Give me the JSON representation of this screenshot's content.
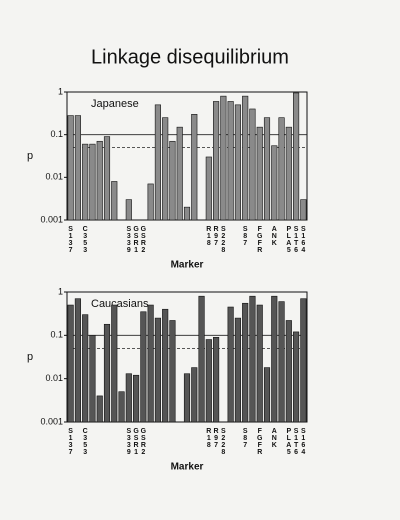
{
  "title": "Linkage disequilibrium",
  "chart_data": [
    {
      "type": "bar",
      "label": "Japanese",
      "ylabel": "p",
      "xlabel": "Marker",
      "log_y": true,
      "ylim": [
        0.001,
        1
      ],
      "yticks": [
        0.001,
        0.01,
        0.1,
        1
      ],
      "reference_lines": [
        {
          "value": 0.1,
          "style": "solid"
        },
        {
          "value": 0.05,
          "style": "dashed"
        }
      ],
      "color": "#8a8a8a",
      "categories": [
        "S137",
        null,
        "C353",
        null,
        null,
        null,
        null,
        null,
        "S339",
        "GSR1",
        "GSR2",
        null,
        null,
        null,
        null,
        null,
        null,
        null,
        null,
        "R18",
        "R97",
        "S228",
        null,
        null,
        "S87",
        null,
        "FGFR",
        null,
        "ANK",
        null,
        "PLA5",
        "S1T6",
        "S164"
      ],
      "values": [
        0.28,
        0.28,
        0.06,
        0.06,
        0.07,
        0.09,
        0.008,
        null,
        0.003,
        null,
        null,
        0.007,
        0.5,
        0.25,
        0.07,
        0.15,
        0.002,
        0.3,
        null,
        0.03,
        0.6,
        0.8,
        0.6,
        0.5,
        0.8,
        0.4,
        0.15,
        0.25,
        0.055,
        0.25,
        0.15,
        0.95,
        0.003
      ]
    },
    {
      "type": "bar",
      "label": "Caucasians",
      "ylabel": "p",
      "xlabel": "Marker",
      "log_y": true,
      "ylim": [
        0.001,
        1
      ],
      "yticks": [
        0.001,
        0.01,
        0.1,
        1
      ],
      "reference_lines": [
        {
          "value": 0.1,
          "style": "solid"
        },
        {
          "value": 0.05,
          "style": "dashed"
        }
      ],
      "color": "#555555",
      "categories": [
        "S137",
        null,
        "C353",
        null,
        null,
        null,
        null,
        null,
        "S339",
        "GSR1",
        "GSR2",
        null,
        null,
        null,
        null,
        null,
        null,
        null,
        null,
        "R18",
        "R97",
        "S228",
        null,
        null,
        "S87",
        null,
        "FGFR",
        null,
        "ANK",
        null,
        "PLA5",
        "S1T6",
        "S164"
      ],
      "values": [
        0.5,
        0.7,
        0.3,
        0.1,
        0.004,
        0.18,
        0.5,
        0.005,
        0.013,
        0.012,
        0.35,
        0.5,
        0.25,
        0.4,
        0.22,
        null,
        0.013,
        0.018,
        0.8,
        0.08,
        0.09,
        null,
        0.45,
        0.25,
        0.55,
        0.8,
        0.5,
        0.018,
        0.8,
        0.6,
        0.22,
        0.12,
        0.7
      ]
    }
  ]
}
